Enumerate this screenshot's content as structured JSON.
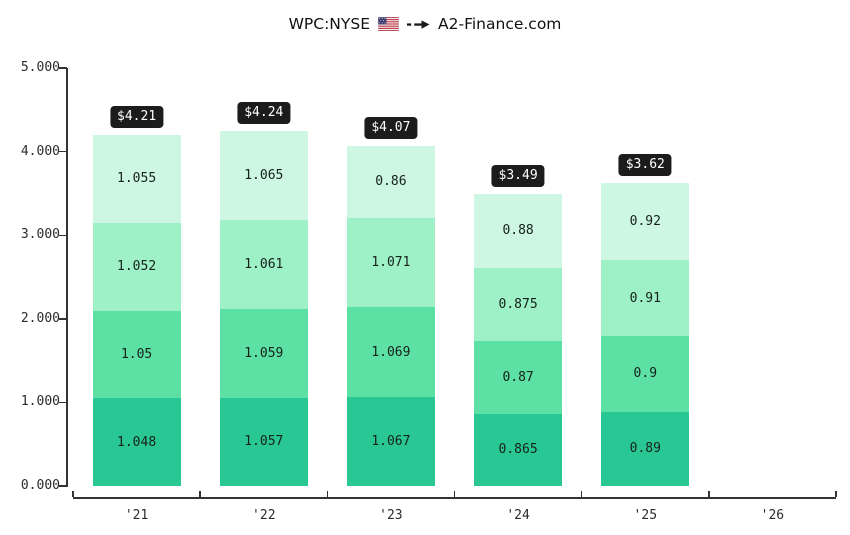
{
  "title": {
    "ticker": "WPC:NYSE",
    "flag_icon": "us-flag",
    "arrow_icon": "double-arrow-right",
    "site": "A2-Finance.com"
  },
  "colors": {
    "segments": [
      "#28c794",
      "#5ce0a4",
      "#9ef0c7",
      "#cdf6e3"
    ],
    "total_badge_bg": "#1c1c1c",
    "total_badge_text": "#ffffff",
    "axis": "#333333",
    "tick_label": "#2b2b2b",
    "segment_label": "#16211c",
    "background": "#ffffff"
  },
  "chart_data": {
    "type": "bar",
    "stacked": true,
    "title": "WPC:NYSE us-flag -> A2-Finance.com",
    "categories": [
      "'21",
      "'22",
      "'23",
      "'24",
      "'25",
      "'26"
    ],
    "series": [
      {
        "name": "segment-1-bottom",
        "values": [
          1.048,
          1.057,
          1.067,
          0.865,
          0.89,
          null
        ],
        "labels": [
          "1.048",
          "1.057",
          "1.067",
          "0.865",
          "0.89",
          ""
        ]
      },
      {
        "name": "segment-2",
        "values": [
          1.05,
          1.059,
          1.069,
          0.87,
          0.9,
          null
        ],
        "labels": [
          "1.05",
          "1.059",
          "1.069",
          "0.87",
          "0.9",
          ""
        ]
      },
      {
        "name": "segment-3",
        "values": [
          1.052,
          1.061,
          1.071,
          0.875,
          0.91,
          null
        ],
        "labels": [
          "1.052",
          "1.061",
          "1.071",
          "0.875",
          "0.91",
          ""
        ]
      },
      {
        "name": "segment-4-top",
        "values": [
          1.055,
          1.065,
          0.86,
          0.88,
          0.92,
          null
        ],
        "labels": [
          "1.055",
          "1.065",
          "0.86",
          "0.88",
          "0.92",
          ""
        ]
      }
    ],
    "totals": [
      "$4.21",
      "$4.24",
      "$4.07",
      "$3.49",
      "$3.62",
      ""
    ],
    "xlabel": "",
    "ylabel": "",
    "ylim": [
      0,
      5
    ],
    "yticks": [
      "0.000",
      "1.000",
      "2.000",
      "3.000",
      "4.000",
      "5.000"
    ],
    "grid": false,
    "legend": "none"
  }
}
